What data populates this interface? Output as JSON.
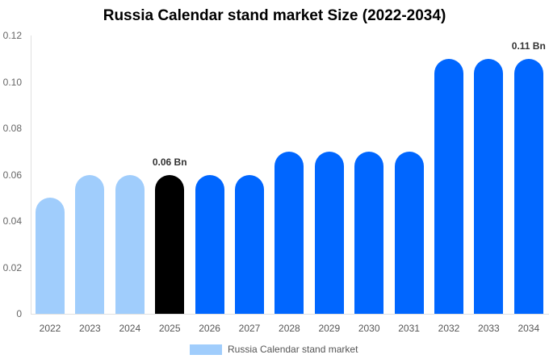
{
  "chart_data": {
    "type": "bar",
    "title": "Russia Calendar stand market  Size (2022-2034)",
    "xlabel": "",
    "ylabel": "",
    "categories": [
      "2022",
      "2023",
      "2024",
      "2025",
      "2026",
      "2027",
      "2028",
      "2029",
      "2030",
      "2031",
      "2032",
      "2033",
      "2034"
    ],
    "series": [
      {
        "name": "Russia Calendar stand market",
        "values": [
          0.05,
          0.06,
          0.06,
          0.06,
          0.06,
          0.06,
          0.07,
          0.07,
          0.07,
          0.07,
          0.11,
          0.11,
          0.11
        ]
      }
    ],
    "ylim": [
      0,
      0.12
    ],
    "yticks": [
      "0",
      "0.02",
      "0.04",
      "0.06",
      "0.08",
      "0.10",
      "0.12"
    ],
    "annotations": [
      {
        "category": "2025",
        "text": "0.06 Bn"
      },
      {
        "category": "2034",
        "text": "0.11 Bn"
      }
    ],
    "bar_colors": [
      "#a0cdfc",
      "#a0cdfc",
      "#a0cdfc",
      "#000000",
      "#0066ff",
      "#0066ff",
      "#0066ff",
      "#0066ff",
      "#0066ff",
      "#0066ff",
      "#0066ff",
      "#0066ff",
      "#0066ff"
    ],
    "legend_position": "bottom",
    "grid": false
  },
  "title": "Russia Calendar stand market  Size (2022-2034)",
  "legend": {
    "label": "Russia Calendar stand market",
    "color": "#a0cdfc"
  }
}
